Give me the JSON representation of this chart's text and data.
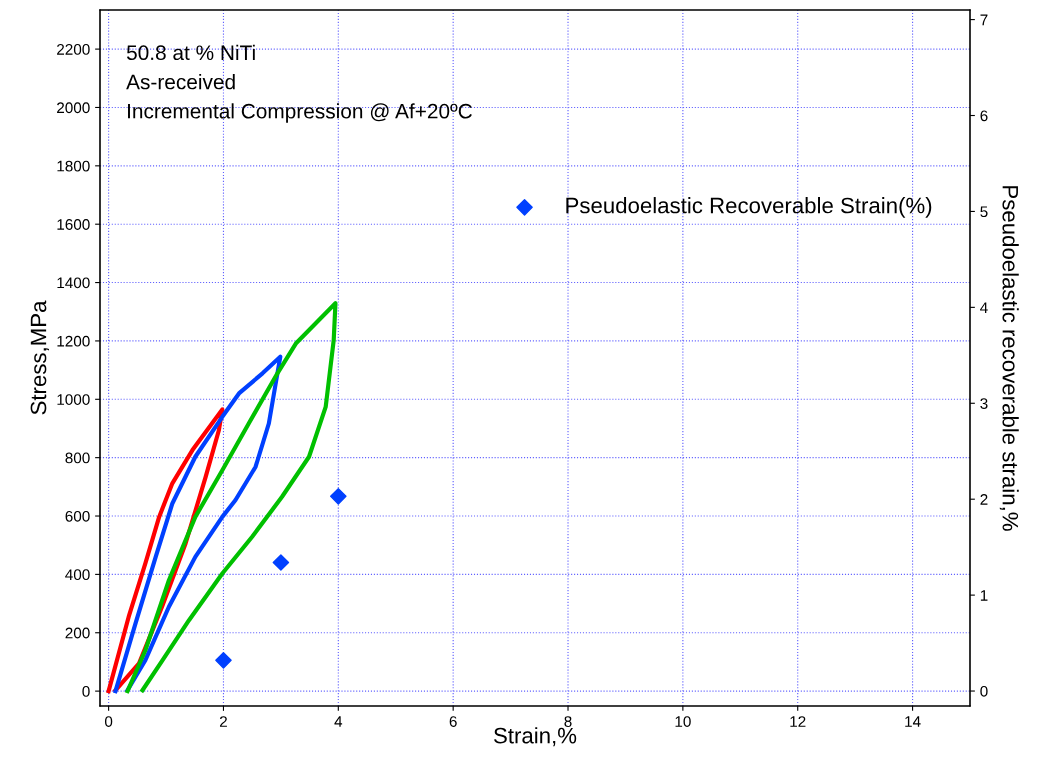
{
  "chart_data": {
    "type": "line",
    "xlabel": "Strain,%",
    "ylabel": "Stress,MPa",
    "y2label": "Pseudoelastic recoverable strain,%",
    "annotations": [
      "50.8 at % NiTi",
      "As-received",
      "Incremental Compression @ Af+20ºC"
    ],
    "xlim": [
      -0.15,
      15.0
    ],
    "xticks": [
      0,
      2,
      4,
      6,
      8,
      10,
      12,
      14
    ],
    "ylim": [
      -51,
      2334
    ],
    "yticks": [
      0,
      200,
      400,
      600,
      800,
      1000,
      1200,
      1400,
      1600,
      1800,
      2000,
      2200
    ],
    "y2lim": [
      -0.156,
      7.1
    ],
    "y2ticks": [
      0,
      1,
      2,
      3,
      4,
      5,
      6,
      7
    ],
    "grid": true,
    "legend": "top right",
    "line_style": "solid",
    "series": [
      {
        "color": "#ff0000",
        "marker": "none",
        "x": [
          0,
          0.35,
          0.64,
          0.88,
          1.11,
          1.46,
          1.98,
          1.92,
          1.69,
          1.34,
          0.93,
          0.53,
          0.12
        ],
        "values": [
          0,
          255,
          438,
          597,
          712,
          826,
          965,
          894,
          734,
          506,
          289,
          95,
          3
        ]
      },
      {
        "color": "#0040ff",
        "marker": "none",
        "x": [
          0.12,
          0.47,
          0.82,
          1.11,
          1.51,
          1.98,
          2.27,
          2.68,
          2.99,
          2.91,
          2.79,
          2.56,
          2.21,
          1.98,
          1.51,
          1.05,
          0.64,
          0.33
        ],
        "values": [
          0,
          233,
          460,
          643,
          803,
          940,
          1020,
          1089,
          1146,
          1055,
          917,
          769,
          655,
          597,
          460,
          289,
          106,
          3
        ]
      },
      {
        "color": "#00c000",
        "marker": "none",
        "x": [
          0.33,
          0.64,
          1.05,
          1.51,
          1.98,
          2.44,
          2.94,
          3.26,
          3.95,
          3.92,
          3.78,
          3.49,
          3.02,
          2.5,
          1.98,
          1.4,
          0.94,
          0.59
        ],
        "values": [
          0,
          140,
          380,
          597,
          757,
          917,
          1089,
          1191,
          1329,
          1203,
          974,
          803,
          666,
          529,
          403,
          243,
          106,
          3
        ]
      },
      {
        "type": "scatter",
        "axis": "y2",
        "name": "Pseudoelastic Recoverable Strain(%)",
        "color": "#0040ff",
        "marker": "diamond",
        "x": [
          2,
          3,
          4
        ],
        "values": [
          0.32,
          1.34,
          2.03
        ]
      }
    ]
  }
}
